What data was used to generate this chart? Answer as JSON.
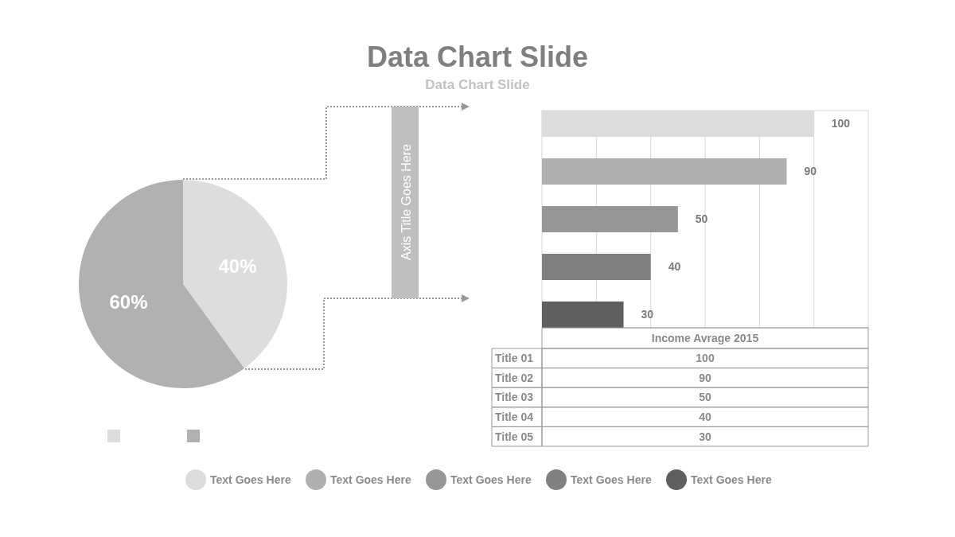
{
  "chart_data": [
    {
      "type": "pie",
      "title": "Data Chart Slide",
      "subtitle": "Data Chart Slide",
      "categories": [
        null,
        null
      ],
      "values": [
        40,
        60
      ],
      "colors": [
        "#dddddd",
        "#b1b1b1"
      ],
      "value_labels": [
        "40%",
        "60%"
      ]
    },
    {
      "type": "bar",
      "orientation": "horizontal",
      "ylabel": "Axis Title Goes Here",
      "categories": [
        null,
        null,
        null,
        null,
        null
      ],
      "values": [
        100,
        90,
        50,
        40,
        30
      ],
      "colors": [
        "#dcdcdc",
        "#b0b0b0",
        "#979797",
        "#808080",
        "#5f5f5f"
      ],
      "xlim": [
        0,
        120
      ],
      "xticks": [
        {
          "value": 20,
          "label": null
        },
        {
          "value": 40,
          "label": null
        },
        {
          "value": 60,
          "label": null
        },
        {
          "value": 80,
          "label": null
        },
        {
          "value": 100,
          "label": null
        }
      ],
      "grid": "x",
      "data_labels": true,
      "annotations": [
        "Text Goes Here",
        "Text Goes Here",
        "Text Goes Here",
        "Text Goes Here",
        "Text Goes Here"
      ]
    },
    {
      "type": "other",
      "title": "Income Avrage 2015",
      "categories": [
        "Title 01",
        "Title 02",
        "Title 03",
        "Title 04",
        "Title 05"
      ],
      "values": [
        100,
        90,
        50,
        40,
        30
      ],
      "data_labels": true
    }
  ]
}
